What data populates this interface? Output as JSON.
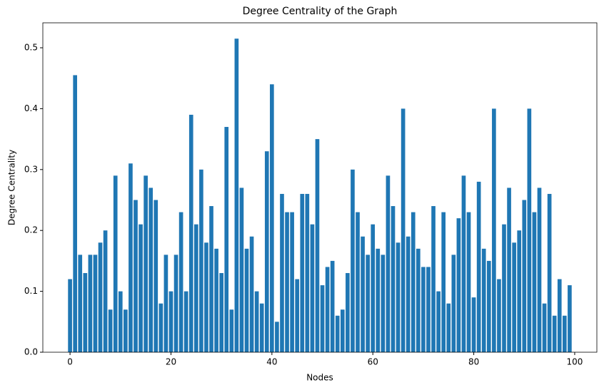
{
  "chart_data": {
    "type": "bar",
    "title": "Degree Centrality of the Graph",
    "x_label": "Nodes",
    "y_label": "Degree Centrality",
    "x": [
      0,
      1,
      2,
      3,
      4,
      5,
      6,
      7,
      8,
      9,
      10,
      11,
      12,
      13,
      14,
      15,
      16,
      17,
      18,
      19,
      20,
      21,
      22,
      23,
      24,
      25,
      26,
      27,
      28,
      29,
      30,
      31,
      32,
      33,
      34,
      35,
      36,
      37,
      38,
      39,
      40,
      41,
      42,
      43,
      44,
      45,
      46,
      47,
      48,
      49,
      50,
      51,
      52,
      53,
      54,
      55,
      56,
      57,
      58,
      59,
      60,
      61,
      62,
      63,
      64,
      65,
      66,
      67,
      68,
      69,
      70,
      71,
      72,
      73,
      74,
      75,
      76,
      77,
      78,
      79,
      80,
      81,
      82,
      83,
      84,
      85,
      86,
      87,
      88,
      89,
      90,
      91,
      92,
      93,
      94,
      95,
      96,
      97,
      98,
      99
    ],
    "values": [
      0.12,
      0.455,
      0.16,
      0.13,
      0.16,
      0.16,
      0.18,
      0.2,
      0.07,
      0.29,
      0.1,
      0.07,
      0.31,
      0.25,
      0.21,
      0.29,
      0.27,
      0.25,
      0.08,
      0.16,
      0.1,
      0.16,
      0.23,
      0.1,
      0.39,
      0.21,
      0.3,
      0.18,
      0.24,
      0.17,
      0.13,
      0.37,
      0.07,
      0.515,
      0.27,
      0.17,
      0.19,
      0.1,
      0.08,
      0.33,
      0.44,
      0.05,
      0.26,
      0.23,
      0.23,
      0.12,
      0.26,
      0.26,
      0.21,
      0.35,
      0.11,
      0.14,
      0.15,
      0.06,
      0.07,
      0.13,
      0.3,
      0.23,
      0.19,
      0.16,
      0.21,
      0.17,
      0.16,
      0.29,
      0.24,
      0.18,
      0.4,
      0.19,
      0.23,
      0.17,
      0.14,
      0.14,
      0.24,
      0.1,
      0.23,
      0.08,
      0.16,
      0.22,
      0.29,
      0.23,
      0.09,
      0.28,
      0.17,
      0.15,
      0.4,
      0.12,
      0.21,
      0.27,
      0.18,
      0.2,
      0.25,
      0.4,
      0.23,
      0.27,
      0.08,
      0.26,
      0.06,
      0.12,
      0.06,
      0.11
    ],
    "color": "#1f77b4",
    "xlim": [
      -5.39,
      104.39
    ],
    "xticks": [
      0,
      20,
      40,
      60,
      80,
      100
    ],
    "ylim": [
      0,
      0.541
    ],
    "yticks": [
      {
        "value": 0,
        "label": "0.0"
      },
      0.1,
      0.2,
      0.3,
      0.4,
      0.5
    ]
  }
}
